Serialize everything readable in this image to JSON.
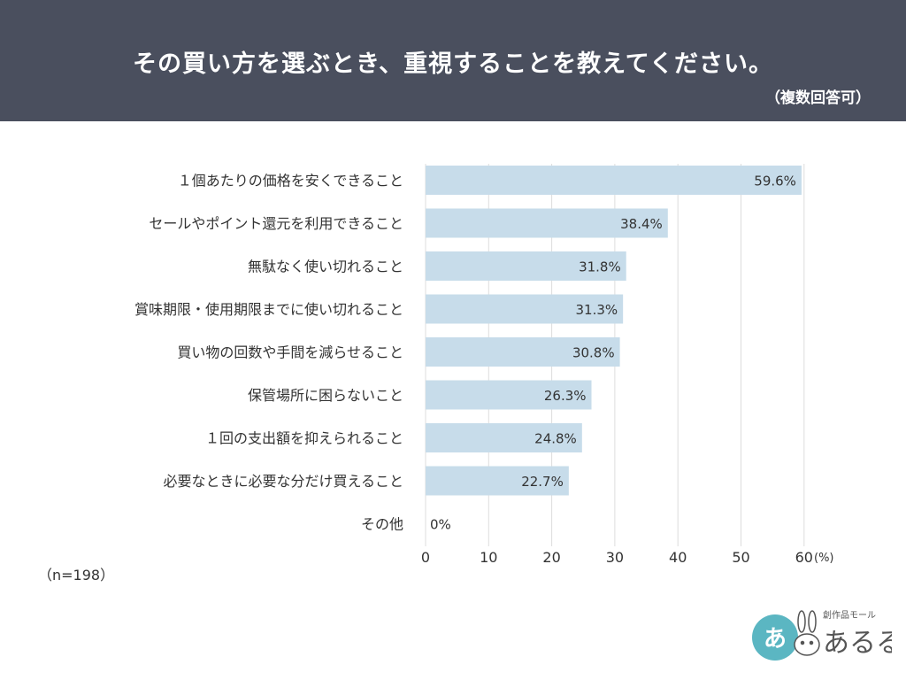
{
  "header": {
    "title": "その買い方を選ぶとき、重視することを教えてください。",
    "subtitle": "（複数回答可）",
    "background": "#4a4f5e"
  },
  "chart_data": {
    "type": "bar",
    "orientation": "horizontal",
    "categories": [
      "１個あたりの価格を安くできること",
      "セールやポイント還元を利用できること",
      "無駄なく使い切れること",
      "賞味期限・使用期限までに使い切れること",
      "買い物の回数や手間を減らせること",
      "保管場所に困らないこと",
      "１回の支出額を抑えられること",
      "必要なときに必要な分だけ買えること",
      "その他"
    ],
    "values": [
      59.6,
      38.4,
      31.8,
      31.3,
      30.8,
      26.3,
      24.8,
      22.7,
      0
    ],
    "value_labels": [
      "59.6%",
      "38.4%",
      "31.8%",
      "31.3%",
      "30.8%",
      "26.3%",
      "24.8%",
      "22.7%",
      "0%"
    ],
    "xlim": [
      0,
      60
    ],
    "ticks": [
      0,
      10,
      20,
      30,
      40,
      50,
      60
    ],
    "tick_labels": [
      "0",
      "10",
      "20",
      "30",
      "40",
      "50",
      "60"
    ],
    "unit_label": "(%)",
    "grid": true,
    "bar_color": "#c7dcea",
    "grid_color": "#dddddd"
  },
  "footer": {
    "sample_size": "（n=198）"
  },
  "logo": {
    "brand_small": "創作品モール",
    "brand_large": "あるる",
    "circle_text": "あ",
    "circle_color": "#5bb6c2"
  }
}
